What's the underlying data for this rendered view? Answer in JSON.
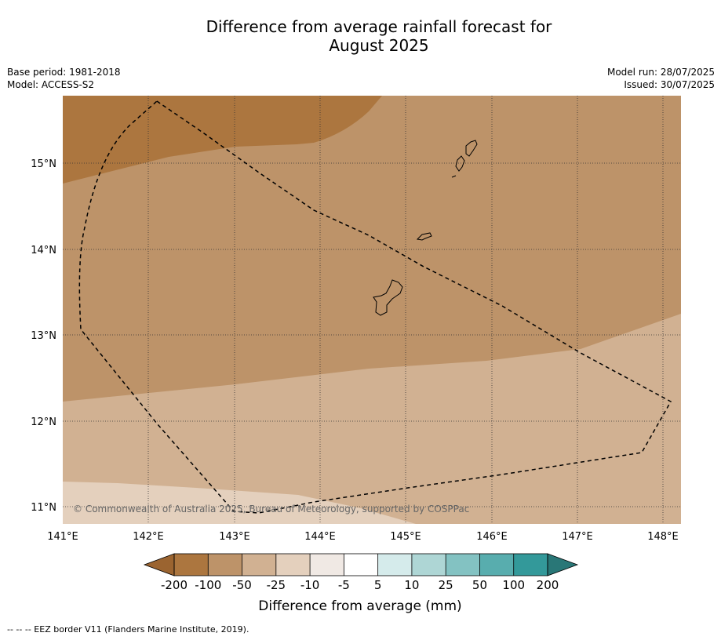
{
  "title_line1": "Difference from average rainfall forecast for",
  "title_line2": "August 2025",
  "meta": {
    "base_period": "Base period: 1981-2018",
    "model": "Model: ACCESS-S2",
    "model_run": "Model run: 28/07/2025",
    "issued": "Issued: 30/07/2025"
  },
  "copyright": "© Commonwealth of Australia 2025, Bureau of Meteorology, supported by COSPPac",
  "lat_labels": [
    "15°N",
    "14°N",
    "13°N",
    "12°N",
    "11°N"
  ],
  "lon_labels": [
    "141°E",
    "142°E",
    "143°E",
    "144°E",
    "145°E",
    "146°E",
    "147°E",
    "148°E"
  ],
  "colorbar": {
    "ticks": [
      "-200",
      "-100",
      "-50",
      "-25",
      "-10",
      "-5",
      "5",
      "10",
      "25",
      "50",
      "100",
      "200"
    ],
    "colors": [
      "#9b6430",
      "#ac763f",
      "#bd9369",
      "#d1b192",
      "#e4d0bd",
      "#f0e9e4",
      "#ffffff",
      "#d5ebeb",
      "#aed6d5",
      "#83c2c2",
      "#58adae",
      "#33999a",
      "#297777"
    ],
    "label": "Difference from average (mm)"
  },
  "footer": "--  --  -- EEZ border V11 (Flanders Marine Institute, 2019)."
}
